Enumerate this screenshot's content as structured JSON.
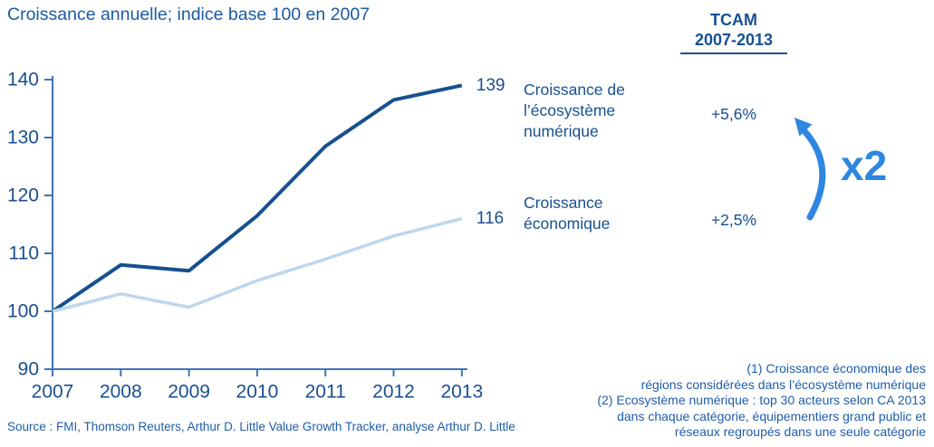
{
  "title": "Croissance annuelle; indice base 100 en 2007",
  "tcam": {
    "header_line1": "TCAM",
    "header_line2": "2007-2013",
    "values": [
      "+5,6%",
      "+2,5%"
    ],
    "multiplier": "x2"
  },
  "labels": {
    "ecosystem": "Croissance de\nl’écosystème\nnumérique",
    "economy": "Croissance\néconomique"
  },
  "chart_data": {
    "type": "line",
    "title": "Croissance annuelle; indice base 100 en 2007",
    "xlabel": "",
    "ylabel": "Indice base 100 en 2007",
    "x": [
      2007,
      2008,
      2009,
      2010,
      2011,
      2012,
      2013
    ],
    "series": [
      {
        "name": "Croissance de l’écosystème numérique",
        "values": [
          100,
          108,
          107,
          116.5,
          128.5,
          136.5,
          139
        ],
        "color": "#17508f",
        "end_label": "139",
        "tcam_2007_2013": "+5,6%"
      },
      {
        "name": "Croissance économique",
        "values": [
          100,
          103,
          100.7,
          105.3,
          109,
          113,
          116
        ],
        "color": "#bdd7ee",
        "end_label": "116",
        "tcam_2007_2013": "+2,5%"
      }
    ],
    "yticks": [
      90,
      100,
      110,
      120,
      130,
      140
    ],
    "ylim": [
      90,
      140
    ],
    "grid": false,
    "legend_position": "right-of-line-ends",
    "axis_color": "#3f74b4",
    "tick_label_color": "#1b4e8f"
  },
  "annotation": {
    "multiplier": "x2",
    "arrow_color": "#2e86e0"
  },
  "footnotes": {
    "lines": [
      "(1)  Croissance économique des",
      "régions considérées dans l’écosystème numérique",
      "(2)  Ecosystème numérique : top 30 acteurs selon CA 2013",
      "dans chaque catégorie, équipementiers grand public et",
      "réseaux regroupés dans une seule catégorie"
    ]
  },
  "source": "Source : FMI, Thomson Reuters, Arthur D. Little Value Growth Tracker, analyse Arthur D. Little"
}
